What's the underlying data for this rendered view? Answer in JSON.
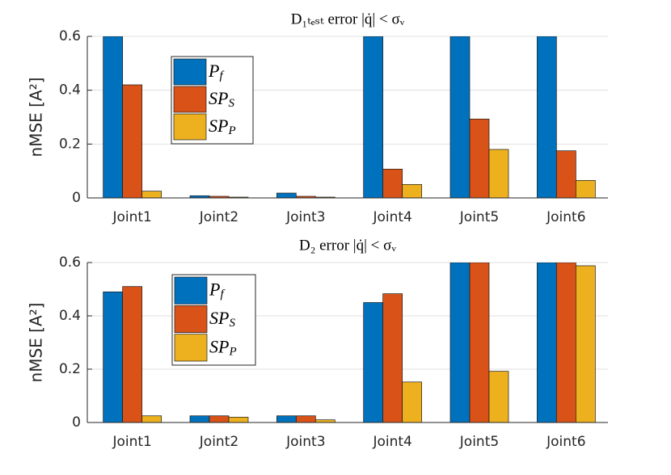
{
  "chart_data": [
    {
      "type": "bar",
      "title": "D₁ₜₑₛₜ error |q̇| < σᵥ",
      "ylabel": "nMSE [A²]",
      "categories": [
        "Joint1",
        "Joint2",
        "Joint3",
        "Joint4",
        "Joint5",
        "Joint6"
      ],
      "series": [
        {
          "name": "Pf",
          "color": "#0072bd",
          "values": [
            0.6,
            0.008,
            0.018,
            0.6,
            0.6,
            0.6
          ]
        },
        {
          "name": "SPS",
          "color": "#d95319",
          "values": [
            0.42,
            0.006,
            0.006,
            0.107,
            0.293,
            0.175
          ]
        },
        {
          "name": "SPP",
          "color": "#edb120",
          "values": [
            0.025,
            0.003,
            0.003,
            0.05,
            0.18,
            0.065
          ]
        }
      ],
      "ylim": [
        0,
        0.6
      ],
      "yticks": [
        0,
        0.2,
        0.4,
        0.6
      ],
      "grid": true
    },
    {
      "type": "bar",
      "title": "D₂ error |q̇| < σᵥ",
      "ylabel": "nMSE [A²]",
      "categories": [
        "Joint1",
        "Joint2",
        "Joint3",
        "Joint4",
        "Joint5",
        "Joint6"
      ],
      "series": [
        {
          "name": "Pf",
          "color": "#0072bd",
          "values": [
            0.49,
            0.025,
            0.025,
            0.45,
            0.6,
            0.6
          ]
        },
        {
          "name": "SPS",
          "color": "#d95319",
          "values": [
            0.51,
            0.025,
            0.025,
            0.483,
            0.6,
            0.6
          ]
        },
        {
          "name": "SPP",
          "color": "#edb120",
          "values": [
            0.025,
            0.02,
            0.01,
            0.152,
            0.192,
            0.588
          ]
        }
      ],
      "ylim": [
        0,
        0.6
      ],
      "yticks": [
        0,
        0.2,
        0.4,
        0.6
      ],
      "grid": true
    }
  ]
}
